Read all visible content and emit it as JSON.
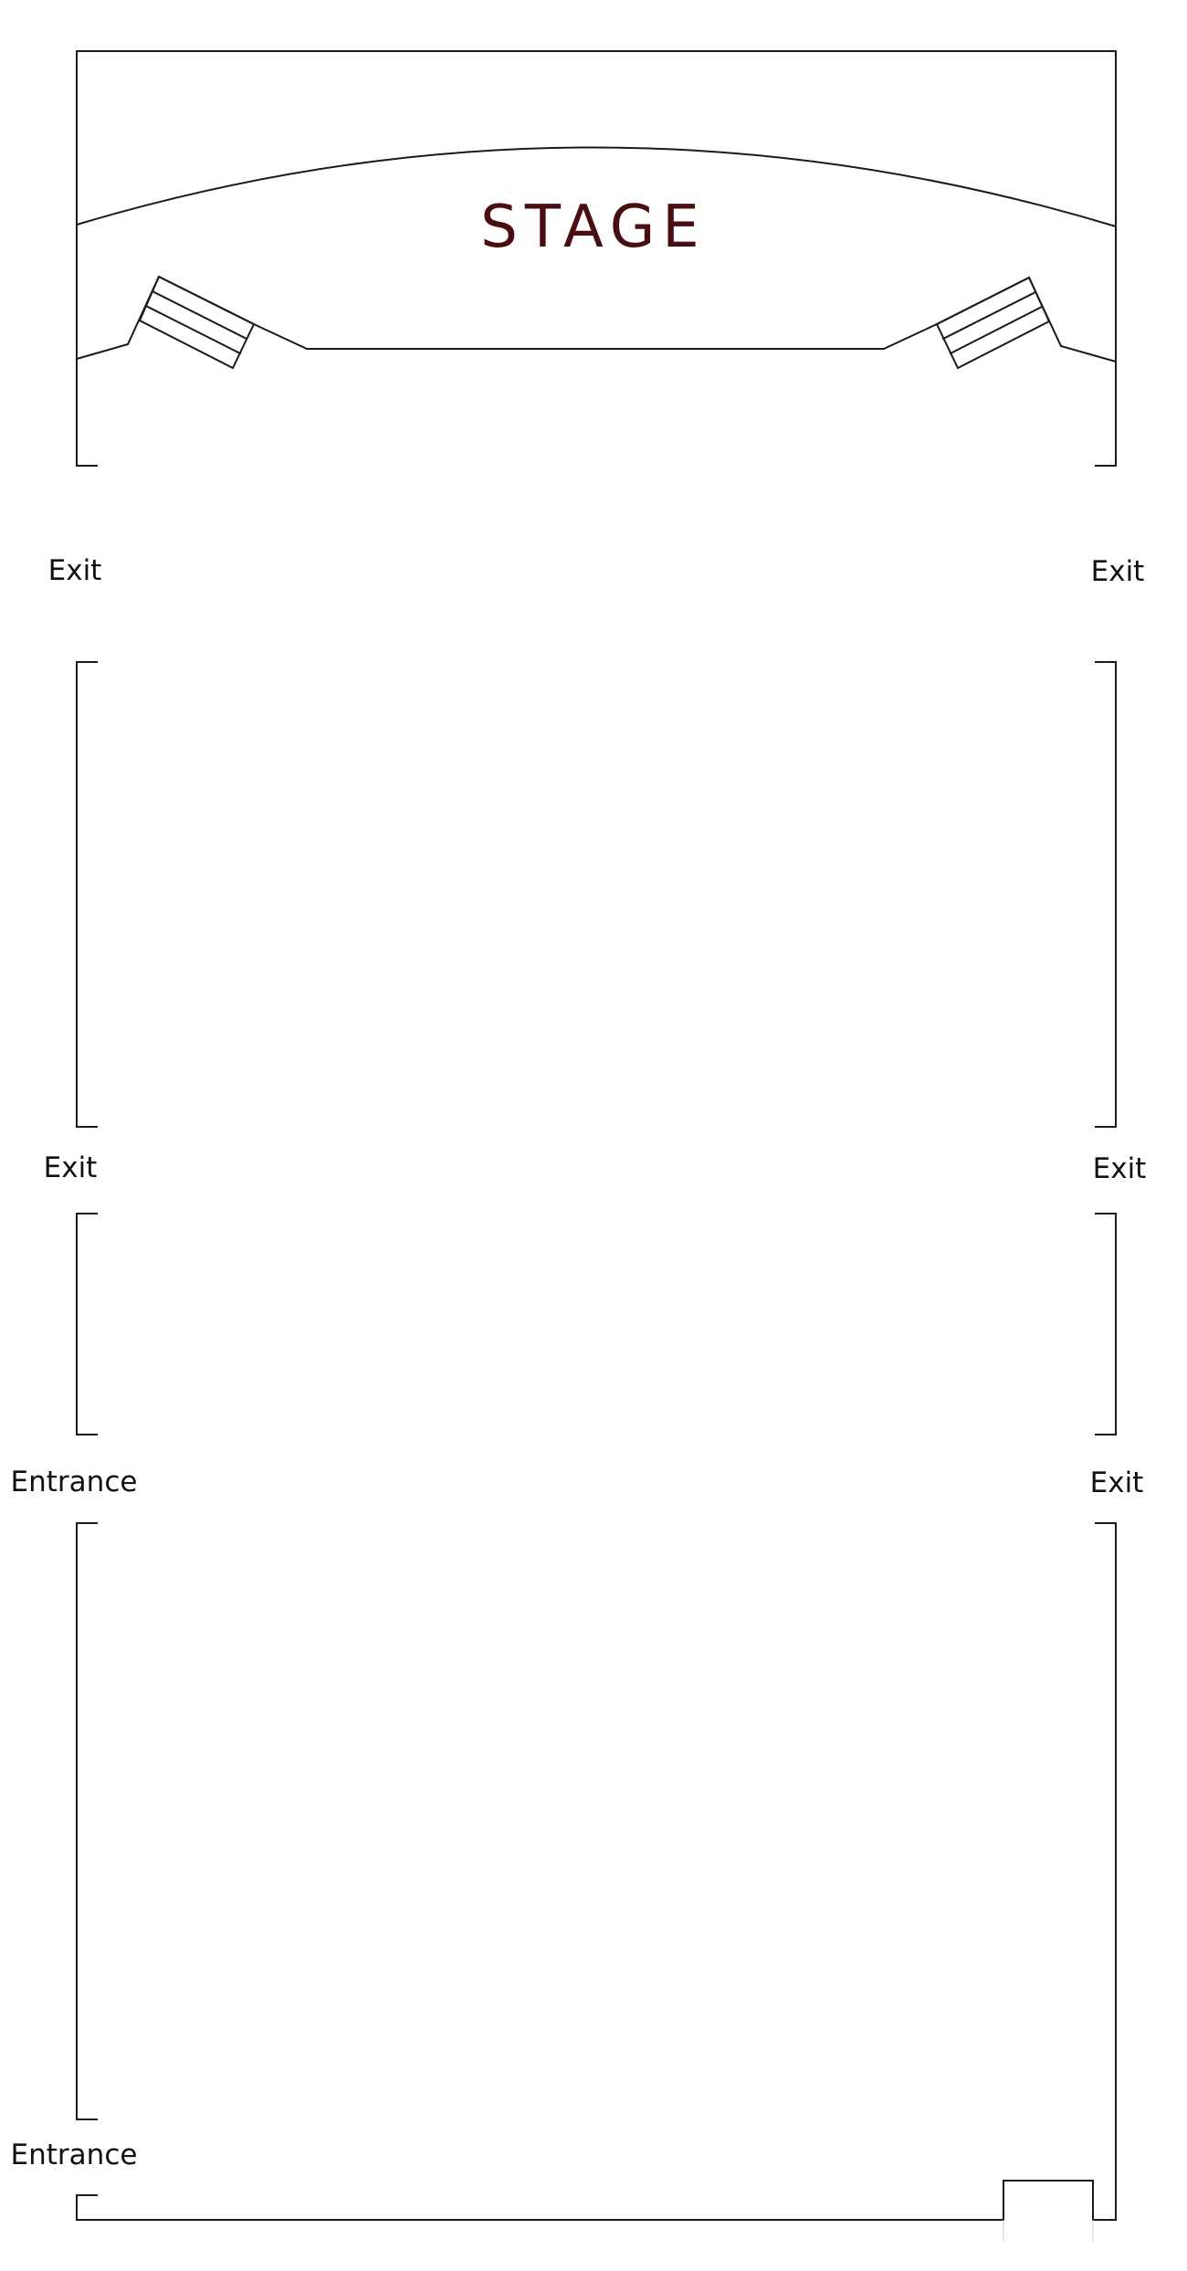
{
  "stage": {
    "label": "STAGE",
    "color": "#4a0d12"
  },
  "doors": {
    "left_exit_1": "Exit",
    "right_exit_1": "Exit",
    "left_exit_2": "Exit",
    "right_exit_2": "Exit",
    "left_entrance_1": "Entrance",
    "right_exit_3": "Exit",
    "left_entrance_2": "Entrance"
  },
  "colors": {
    "walls": "#1a1a1a",
    "background": "#ffffff"
  }
}
